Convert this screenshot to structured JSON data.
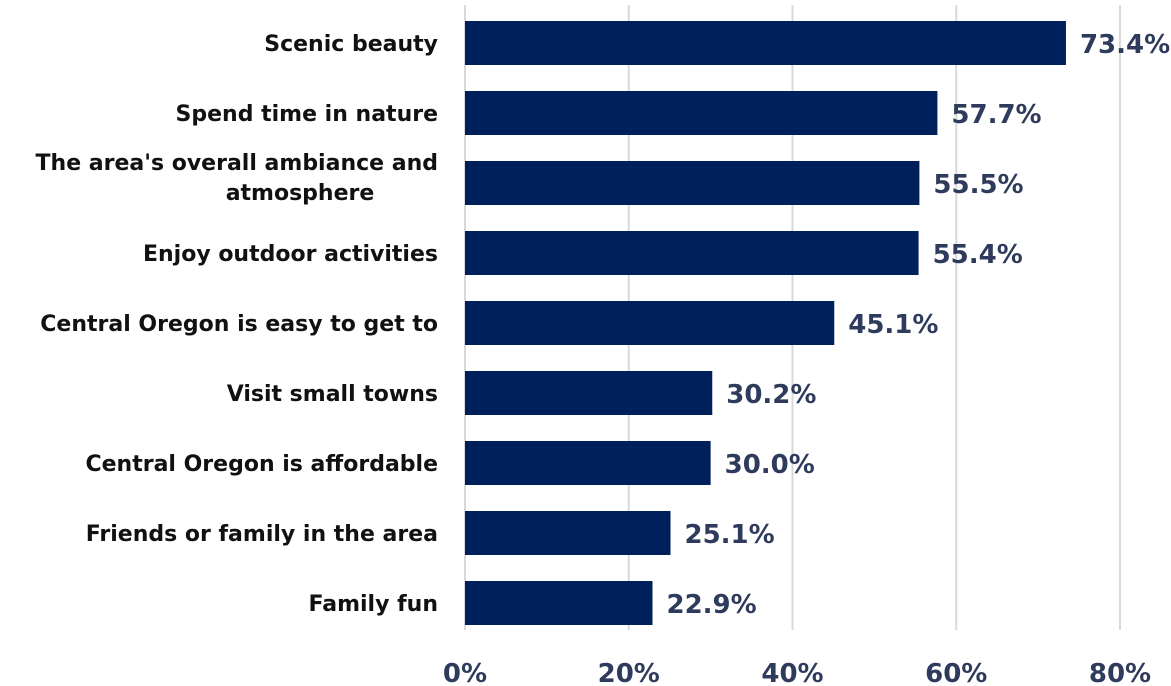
{
  "chart_data": {
    "type": "bar",
    "orientation": "horizontal",
    "title": "",
    "xlabel": "",
    "ylabel": "",
    "categories": [
      "Scenic beauty",
      "Spend time in nature",
      "The area's overall ambiance and atmosphere",
      "Enjoy outdoor activities",
      "Central Oregon is easy to get to",
      "Visit small towns",
      "Central Oregon is affordable",
      "Friends or family in the area",
      "Family fun"
    ],
    "values": [
      73.4,
      57.7,
      55.5,
      55.4,
      45.1,
      30.2,
      30.0,
      25.1,
      22.9
    ],
    "value_labels": [
      "73.4%",
      "57.7%",
      "55.5%",
      "55.4%",
      "45.1%",
      "30.2%",
      "30.0%",
      "25.1%",
      "22.9%"
    ],
    "xlim": [
      0,
      80
    ],
    "xticks": [
      0,
      20,
      40,
      60,
      80
    ],
    "xtick_labels": [
      "0%",
      "20%",
      "40%",
      "60%",
      "80%"
    ],
    "grid": "vertical",
    "legend": "none",
    "colors": {
      "bar": "#00205b",
      "value_label": "#2f3b5c",
      "category_label": "#111111",
      "tick_label": "#2f3b5c",
      "gridline": "#d9d9d9"
    }
  }
}
